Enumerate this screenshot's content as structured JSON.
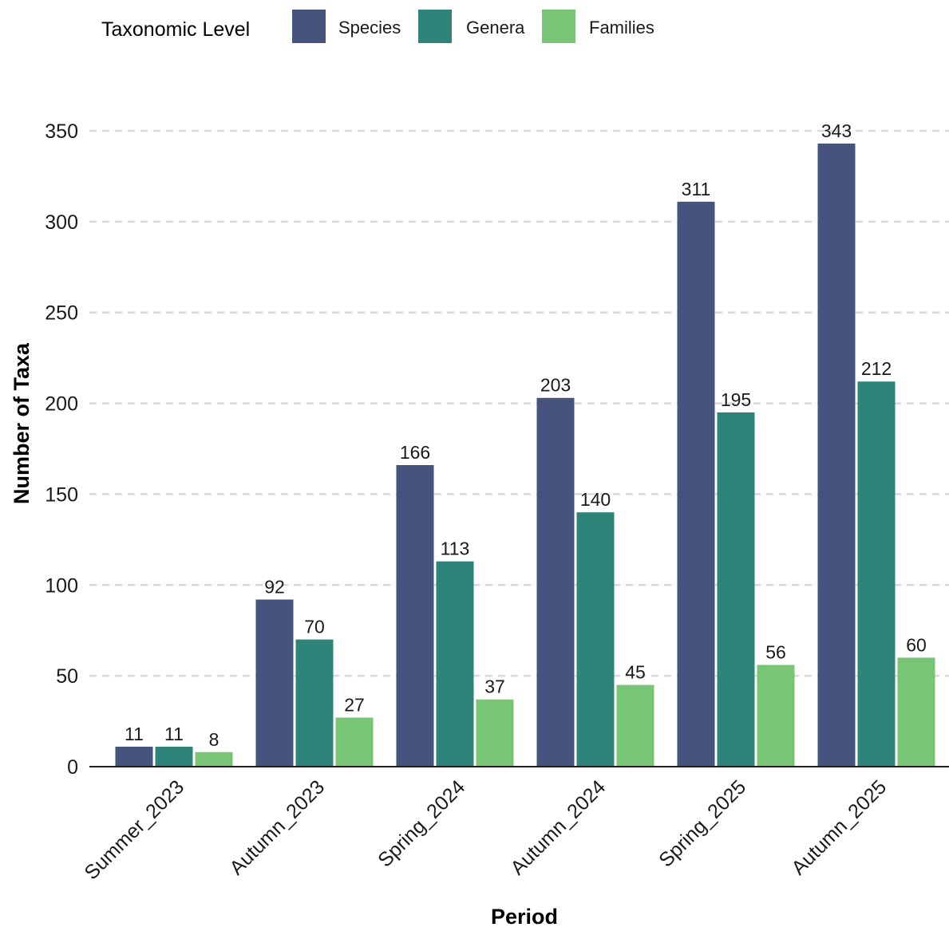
{
  "chart_data": {
    "type": "bar",
    "title": "",
    "xlabel": "Period",
    "ylabel": "Number of Taxa",
    "categories": [
      "Summer_2023",
      "Autumn_2023",
      "Spring_2024",
      "Autumn_2024",
      "Spring_2025",
      "Autumn_2025"
    ],
    "series": [
      {
        "name": "Species",
        "color": "#46537d",
        "values": [
          11,
          92,
          166,
          203,
          311,
          343
        ]
      },
      {
        "name": "Genera",
        "color": "#2e8479",
        "values": [
          11,
          70,
          113,
          140,
          195,
          212
        ]
      },
      {
        "name": "Families",
        "color": "#78c575",
        "values": [
          8,
          27,
          37,
          45,
          56,
          60
        ]
      }
    ],
    "ylim": [
      0,
      350
    ],
    "yticks": [
      0,
      50,
      100,
      150,
      200,
      250,
      300,
      350
    ],
    "grid": "horizontal dashed",
    "legend": {
      "title": "Taxonomic Level",
      "position": "top-left",
      "entries": [
        "Species",
        "Genera",
        "Families"
      ]
    }
  }
}
